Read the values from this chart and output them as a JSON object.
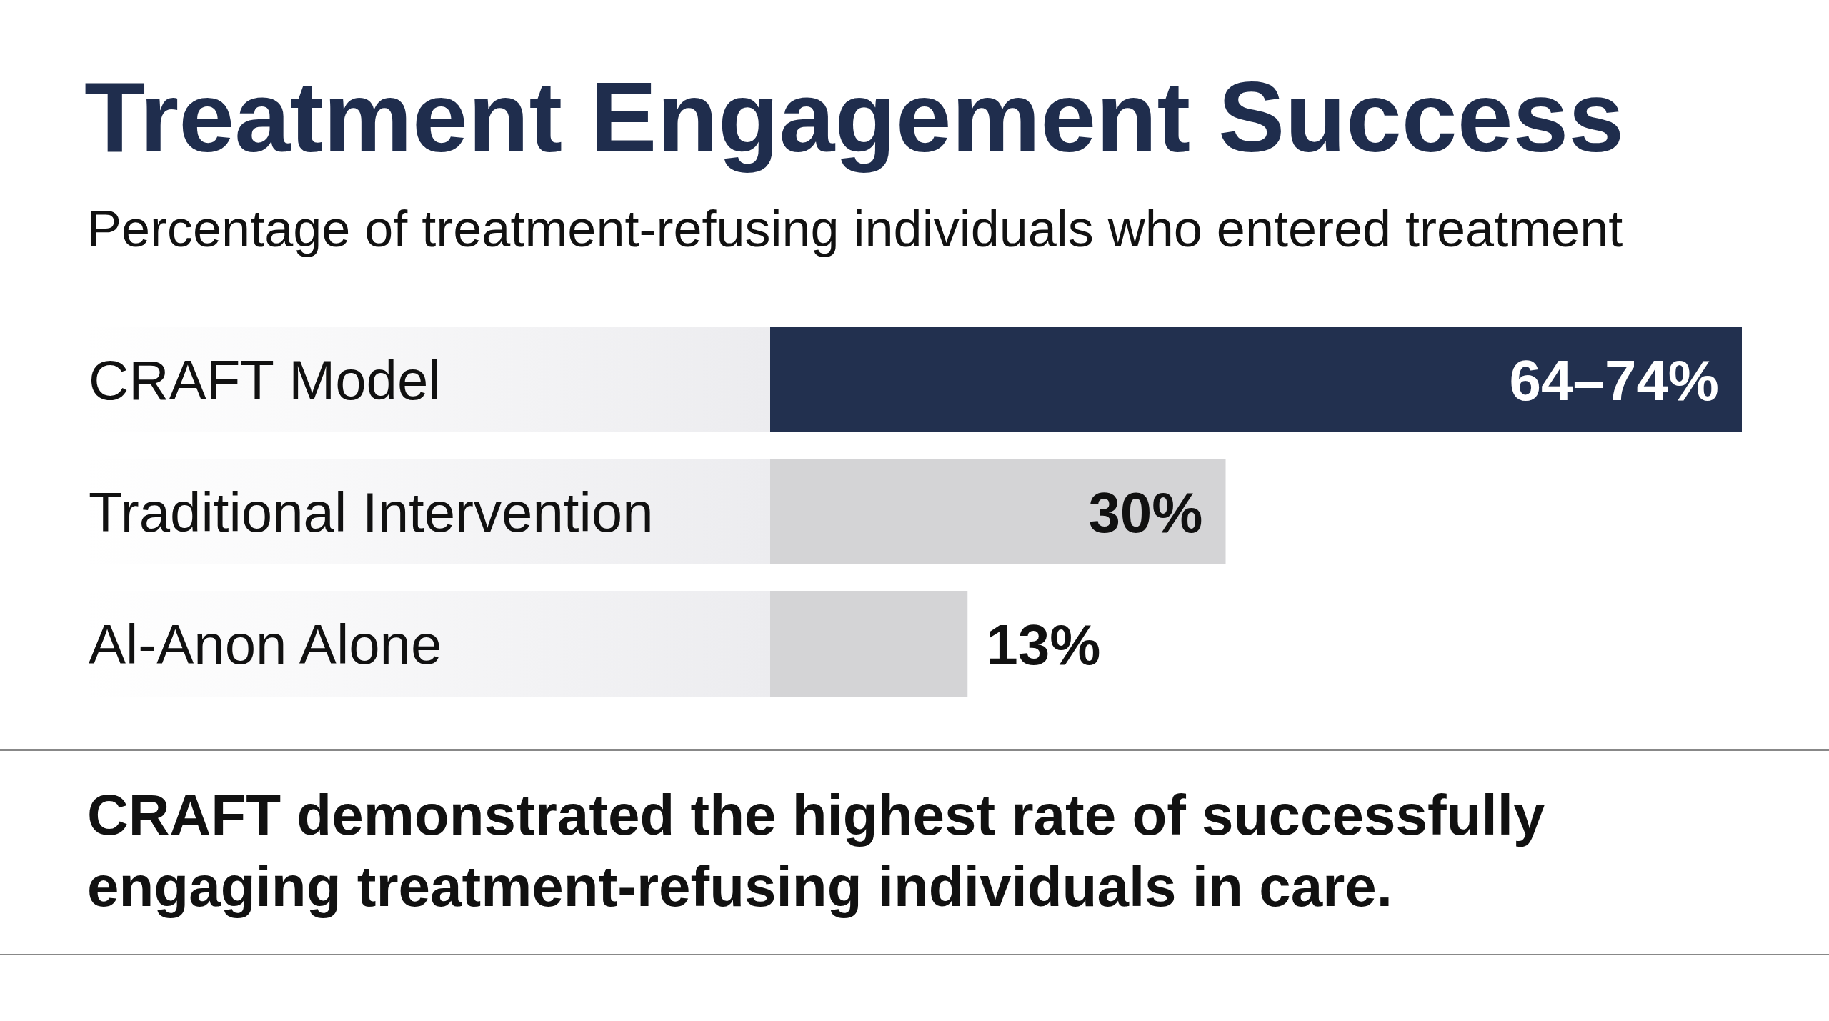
{
  "chart_data": {
    "type": "bar",
    "orientation": "horizontal",
    "title": "Treatment Engagement Success",
    "subtitle": "Percentage of treatment-refusing individuals who entered treatment",
    "categories": [
      "CRAFT Model",
      "Traditional Intervention",
      "Al-Anon Alone"
    ],
    "values": [
      64,
      30,
      13
    ],
    "colors": [
      "#22304f",
      "#d4d4d6",
      "#d4d4d6"
    ],
    "value_labels": [
      "64–74%",
      "30%",
      "13%"
    ],
    "annotations": [
      "CRAFT demonstrated the highest rate of successfully engaging treatment-refusing individuals in care."
    ]
  }
}
